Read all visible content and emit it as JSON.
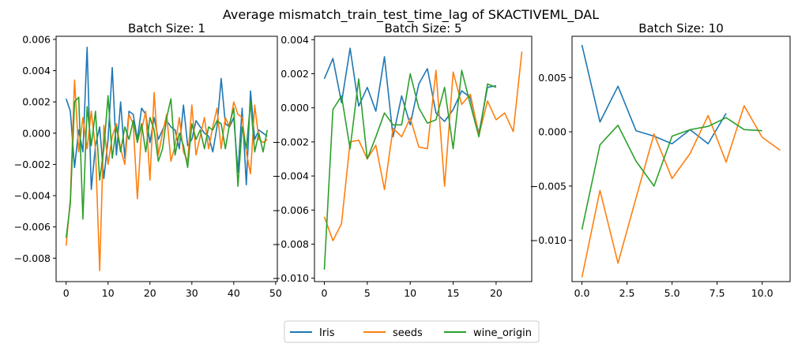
{
  "figure": {
    "suptitle": "Average mismatch_train_test_time_lag of SKACTIVEML_DAL"
  },
  "colors": {
    "Iris": "#1f77b4",
    "seeds": "#ff7f0e",
    "wine_origin": "#2ca02c"
  },
  "legend": {
    "entries": [
      "Iris",
      "seeds",
      "wine_origin"
    ],
    "placement": "bottom-center",
    "ncol": 3
  },
  "chart_data": [
    {
      "type": "line",
      "title": "Batch Size: 1",
      "xlabel": "",
      "ylabel": "",
      "xlim": [
        -2.4,
        50.4
      ],
      "ylim": [
        -0.0095,
        0.0062
      ],
      "xticks": [
        0,
        10,
        20,
        30,
        40,
        50
      ],
      "xtick_labels": [
        "0",
        "10",
        "20",
        "30",
        "40",
        "50"
      ],
      "yticks": [
        -0.008,
        -0.006,
        -0.004,
        -0.002,
        0.0,
        0.002,
        0.004,
        0.006
      ],
      "ytick_labels": [
        "−0.008",
        "−0.006",
        "−0.004",
        "−0.002",
        "0.000",
        "0.002",
        "0.004",
        "0.006"
      ],
      "grid": false,
      "series": [
        {
          "name": "Iris",
          "x": [
            0,
            1,
            2,
            3,
            4,
            5,
            6,
            7,
            8,
            9,
            10,
            11,
            12,
            13,
            14,
            15,
            16,
            17,
            18,
            19,
            20,
            21,
            22,
            23,
            24,
            25,
            26,
            27,
            28,
            29,
            30,
            31,
            32,
            33,
            34,
            35,
            36,
            37,
            38,
            39,
            40,
            41,
            42,
            43,
            44,
            45,
            46,
            47,
            48
          ],
          "y": [
            0.0022,
            0.0014,
            -0.0022,
            0.0002,
            -0.0012,
            0.0055,
            -0.0036,
            -0.0008,
            0.0004,
            -0.0029,
            -0.0004,
            0.0042,
            -0.0014,
            0.002,
            -0.0016,
            0.0014,
            0.0012,
            -0.0004,
            0.0016,
            0.0012,
            -0.0006,
            0.001,
            -0.0004,
            0.0002,
            0.0008,
            0.0004,
            0.0002,
            -0.001,
            0.0018,
            -0.0008,
            -0.0004,
            0.0008,
            0.0004,
            0.0,
            -0.0002,
            -0.0012,
            0.0004,
            0.0035,
            0.0006,
            0.0004,
            0.001,
            -0.0025,
            0.0016,
            -0.0033,
            0.0027,
            -0.0004,
            0.0002,
            0.0,
            -0.0002
          ]
        },
        {
          "name": "seeds",
          "x": [
            0,
            1,
            2,
            3,
            4,
            5,
            6,
            7,
            8,
            9,
            10,
            11,
            12,
            13,
            14,
            15,
            16,
            17,
            18,
            19,
            20,
            21,
            22,
            23,
            24,
            25,
            26,
            27,
            28,
            29,
            30,
            31,
            32,
            33,
            34,
            35,
            36,
            37,
            38,
            39,
            40,
            41,
            42,
            43,
            44,
            45,
            46,
            47,
            48
          ],
          "y": [
            -0.0072,
            -0.0042,
            0.0034,
            -0.0012,
            0.001,
            -0.001,
            0.0014,
            -0.001,
            -0.0088,
            0.0005,
            -0.002,
            -0.0002,
            0.0006,
            -0.001,
            -0.002,
            0.0012,
            0.0006,
            -0.0042,
            0.0002,
            0.0014,
            -0.003,
            0.0026,
            -0.0014,
            0.0,
            0.0012,
            -0.0018,
            -0.0008,
            0.001,
            -0.0012,
            -0.0018,
            0.0018,
            -0.0014,
            -0.0002,
            0.001,
            -0.001,
            0.0004,
            0.0016,
            -0.001,
            0.001,
            0.0004,
            0.002,
            0.0012,
            0.001,
            -0.0012,
            -0.0026,
            0.0018,
            -0.0004,
            -0.0006,
            -0.0004
          ]
        },
        {
          "name": "wine_origin",
          "x": [
            0,
            1,
            2,
            3,
            4,
            5,
            6,
            7,
            8,
            9,
            10,
            11,
            12,
            13,
            14,
            15,
            16,
            17,
            18,
            19,
            20,
            21,
            22,
            23,
            24,
            25,
            26,
            27,
            28,
            29,
            30,
            31,
            32,
            33,
            34,
            35,
            36,
            37,
            38,
            39,
            40,
            41,
            42,
            43,
            44,
            45,
            46,
            47,
            48
          ],
          "y": [
            -0.0067,
            -0.0045,
            0.002,
            0.0023,
            -0.0055,
            0.0017,
            -0.0008,
            0.0014,
            -0.003,
            -0.001,
            0.0024,
            -0.0016,
            0.0004,
            -0.0012,
            0.0004,
            -0.0004,
            0.0008,
            -0.0006,
            0.0006,
            -0.0012,
            0.001,
            0.0002,
            -0.0018,
            -0.001,
            0.001,
            0.0022,
            -0.0014,
            0.0,
            -0.0008,
            -0.0022,
            0.0006,
            -0.0004,
            0.0002,
            -0.001,
            0.0004,
            0.0002,
            0.0008,
            0.0006,
            -0.001,
            0.0006,
            0.0016,
            -0.0034,
            0.0004,
            -0.001,
            0.002,
            -0.0012,
            0.0,
            -0.0012,
            0.0002
          ]
        }
      ]
    },
    {
      "type": "line",
      "title": "Batch Size: 5",
      "xlabel": "",
      "ylabel": "",
      "xlim": [
        -1.15,
        24.15
      ],
      "ylim": [
        -0.0102,
        0.0042
      ],
      "xticks": [
        0,
        5,
        10,
        15,
        20
      ],
      "xtick_labels": [
        "0",
        "5",
        "10",
        "15",
        "20"
      ],
      "yticks": [
        -0.01,
        -0.008,
        -0.006,
        -0.004,
        -0.002,
        0.0,
        0.002,
        0.004
      ],
      "ytick_labels": [
        "−0.010",
        "−0.008",
        "−0.006",
        "−0.004",
        "−0.002",
        "0.000",
        "0.002",
        "0.004"
      ],
      "grid": false,
      "series": [
        {
          "name": "Iris",
          "x": [
            0,
            1,
            2,
            3,
            4,
            5,
            6,
            7,
            8,
            9,
            10,
            11,
            12,
            13,
            14,
            15,
            16,
            17,
            18,
            19,
            20
          ],
          "y": [
            0.0017,
            0.0029,
            0.0003,
            0.0035,
            0.0001,
            0.0012,
            -0.0002,
            0.003,
            -0.0017,
            0.0007,
            -0.001,
            0.0014,
            0.0023,
            -0.0003,
            -0.0008,
            -0.0001,
            0.001,
            0.0006,
            -0.0015,
            0.0012,
            0.0013
          ]
        },
        {
          "name": "seeds",
          "x": [
            0,
            1,
            2,
            3,
            4,
            5,
            6,
            7,
            8,
            9,
            10,
            11,
            12,
            13,
            14,
            15,
            16,
            17,
            18,
            19,
            20,
            21,
            22,
            23
          ],
          "y": [
            -0.0064,
            -0.0078,
            -0.0068,
            -0.002,
            -0.0019,
            -0.003,
            -0.0022,
            -0.0048,
            -0.0012,
            -0.0017,
            -0.0006,
            -0.0023,
            -0.0024,
            0.0022,
            -0.0046,
            0.0021,
            0.0002,
            0.0008,
            -0.0016,
            0.0004,
            -0.0007,
            -0.0003,
            -0.0014,
            0.0033
          ]
        },
        {
          "name": "wine_origin",
          "x": [
            0,
            1,
            2,
            3,
            4,
            5,
            6,
            7,
            8,
            9,
            10,
            11,
            12,
            13,
            14,
            15,
            16,
            17,
            18,
            19,
            20
          ],
          "y": [
            -0.0095,
            -0.0001,
            0.0007,
            -0.0024,
            0.0017,
            -0.003,
            -0.0017,
            -0.0003,
            -0.001,
            -0.001,
            0.002,
            0.0,
            -0.0009,
            -0.0007,
            0.0012,
            -0.0024,
            0.0022,
            0.0002,
            -0.0017,
            0.0014,
            0.0012
          ]
        }
      ]
    },
    {
      "type": "line",
      "title": "Batch Size: 10",
      "xlabel": "",
      "ylabel": "",
      "xlim": [
        -0.55,
        11.55
      ],
      "ylim": [
        -0.0138,
        0.0088
      ],
      "xticks": [
        0.0,
        2.5,
        5.0,
        7.5,
        10.0
      ],
      "xtick_labels": [
        "0.0",
        "2.5",
        "5.0",
        "7.5",
        "10.0"
      ],
      "yticks": [
        -0.01,
        -0.005,
        0.0,
        0.005
      ],
      "ytick_labels": [
        "−0.010",
        "−0.005",
        "0.000",
        "0.005"
      ],
      "grid": false,
      "series": [
        {
          "name": "Iris",
          "x": [
            0,
            1,
            2,
            3,
            4,
            5,
            6,
            7,
            8
          ],
          "y": [
            0.008,
            0.0009,
            0.0042,
            0.0001,
            -0.0004,
            -0.0011,
            0.0002,
            -0.0011,
            0.0017
          ]
        },
        {
          "name": "seeds",
          "x": [
            0,
            1,
            2,
            3,
            4,
            5,
            6,
            7,
            8,
            9,
            10,
            11
          ],
          "y": [
            -0.0134,
            -0.0054,
            -0.0121,
            -0.0061,
            -0.0002,
            -0.0043,
            -0.002,
            0.0015,
            -0.0028,
            0.0024,
            -0.0005,
            -0.0017
          ]
        },
        {
          "name": "wine_origin",
          "x": [
            0,
            1,
            2,
            3,
            4,
            5,
            6,
            7,
            8,
            9,
            10
          ],
          "y": [
            -0.009,
            -0.0012,
            0.0006,
            -0.0027,
            -0.005,
            -0.0004,
            0.0002,
            0.0005,
            0.0013,
            0.0002,
            0.0001
          ]
        }
      ]
    }
  ]
}
